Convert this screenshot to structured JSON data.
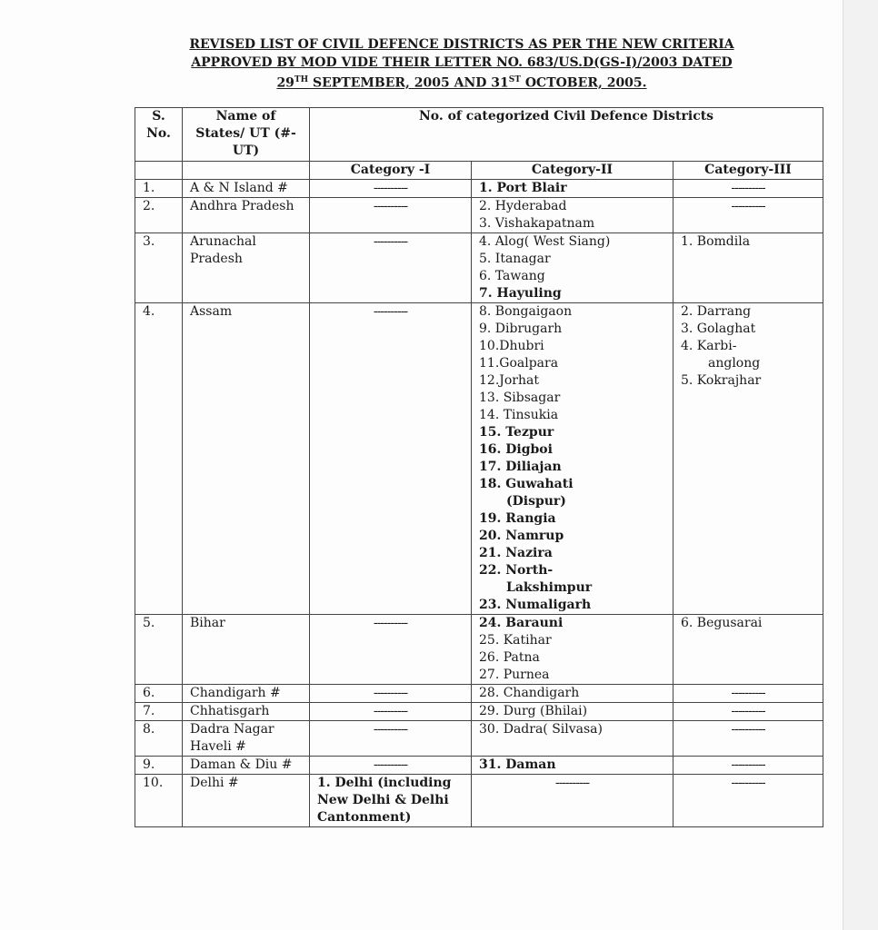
{
  "header": {
    "title_lines": [
      [
        {
          "text": "REVISED LIST OF CIVIL DEFENCE DISTRICTS AS PER THE NEW CRITERIA"
        }
      ],
      [
        {
          "text": "APPROVED BY MOD VIDE THEIR LETTER NO. 683/US.D(GS-I)/2003 DATED"
        }
      ],
      [
        {
          "text": "29"
        },
        {
          "text": "TH",
          "sup": true
        },
        {
          "text": " SEPTEMBER, 2005 AND 31"
        },
        {
          "text": "ST",
          "sup": true
        },
        {
          "text": " OCTOBER, 2005."
        }
      ]
    ]
  },
  "table": {
    "head": {
      "sno": "S. No.",
      "state": "Name of States/ UT (#-UT)",
      "group": "No. of categorized Civil Defence Districts",
      "categories": [
        "Category -I",
        "Category-II",
        "Category-III"
      ]
    },
    "rows": [
      {
        "sno": "1.",
        "state": "A & N Island #",
        "cat1": [
          {
            "text": "----------"
          }
        ],
        "cat2": [
          {
            "text": "1. Port Blair",
            "bold": true
          }
        ],
        "cat3": [
          {
            "text": "----------"
          }
        ]
      },
      {
        "sno": "2.",
        "state": "Andhra Pradesh",
        "cat1": [
          {
            "text": "----------"
          }
        ],
        "cat2": [
          {
            "text": "2. Hyderabad"
          },
          {
            "text": "3. Vishakapatnam"
          }
        ],
        "cat3": [
          {
            "text": "----------"
          }
        ]
      },
      {
        "sno": "3.",
        "state": "Arunachal Pradesh",
        "cat1": [
          {
            "text": "----------"
          }
        ],
        "cat2": [
          {
            "text": "4. Alog( West Siang)"
          },
          {
            "text": "5. Itanagar"
          },
          {
            "text": "6. Tawang"
          },
          {
            "text": "7. Hayuling",
            "bold": true
          }
        ],
        "cat3": [
          {
            "text": "1. Bomdila"
          }
        ]
      },
      {
        "sno": "4.",
        "state": "Assam",
        "cat1": [
          {
            "text": "----------"
          }
        ],
        "cat2": [
          {
            "text": "8. Bongaigaon"
          },
          {
            "text": "9. Dibrugarh"
          },
          {
            "text": "10.Dhubri"
          },
          {
            "text": "11.Goalpara"
          },
          {
            "text": "12.Jorhat"
          },
          {
            "text": "13. Sibsagar"
          },
          {
            "text": "14. Tinsukia"
          },
          {
            "text": "15. Tezpur",
            "bold": true
          },
          {
            "text": "16. Digboi",
            "bold": true
          },
          {
            "text": "17. Diliajan",
            "bold": true
          },
          {
            "text": "18. Guwahati",
            "bold": true
          },
          {
            "text": "(Dispur)",
            "bold": true
          },
          {
            "text": "19. Rangia",
            "bold": true
          },
          {
            "text": "20. Namrup",
            "bold": true
          },
          {
            "text": "21. Nazira",
            "bold": true
          },
          {
            "text": "22. North-",
            "bold": true
          },
          {
            "text": "Lakshimpur",
            "bold": true
          },
          {
            "text": "23. Numaligarh",
            "bold": true
          }
        ],
        "cat3": [
          {
            "text": "2. Darrang"
          },
          {
            "text": "3. Golaghat"
          },
          {
            "text": "4. Karbi-"
          },
          {
            "text": "anglong"
          },
          {
            "text": "5. Kokrajhar"
          }
        ]
      },
      {
        "sno": "5.",
        "state": "Bihar",
        "cat1": [
          {
            "text": "----------"
          }
        ],
        "cat2": [
          {
            "text": "24. Barauni",
            "bold": true
          },
          {
            "text": "25. Katihar"
          },
          {
            "text": "26. Patna"
          },
          {
            "text": "27. Purnea"
          }
        ],
        "cat3": [
          {
            "text": "6. Begusarai"
          }
        ]
      },
      {
        "sno": "6.",
        "state": "Chandigarh #",
        "cat1": [
          {
            "text": "----------"
          }
        ],
        "cat2": [
          {
            "text": "28. Chandigarh"
          }
        ],
        "cat3": [
          {
            "text": "----------"
          }
        ]
      },
      {
        "sno": "7.",
        "state": "Chhatisgarh",
        "cat1": [
          {
            "text": "----------"
          }
        ],
        "cat2": [
          {
            "text": "29. Durg (Bhilai)"
          }
        ],
        "cat3": [
          {
            "text": "----------"
          }
        ]
      },
      {
        "sno": "8.",
        "state": "Dadra Nagar Haveli #",
        "cat1": [
          {
            "text": "----------"
          }
        ],
        "cat2": [
          {
            "text": "30. Dadra( Silvasa)"
          }
        ],
        "cat3": [
          {
            "text": "----------"
          }
        ]
      },
      {
        "sno": "9.",
        "state": "Daman & Diu #",
        "cat1": [
          {
            "text": "----------"
          }
        ],
        "cat2": [
          {
            "text": "31. Daman",
            "bold": true
          }
        ],
        "cat3": [
          {
            "text": "----------"
          }
        ]
      },
      {
        "sno": "10.",
        "state": "Delhi #",
        "cat1": [
          {
            "text": "1. Delhi (including New Delhi & Delhi Cantonment)",
            "bold": true
          }
        ],
        "cat2": [
          {
            "text": "----------"
          }
        ],
        "cat3": [
          {
            "text": "----------"
          }
        ]
      }
    ]
  }
}
